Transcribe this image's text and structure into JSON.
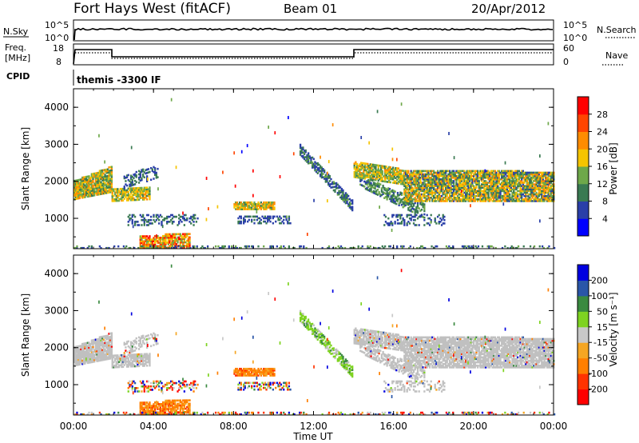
{
  "header": {
    "station": "Fort Hays West (fitACF)",
    "beam": "Beam 01",
    "date": "20/Apr/2012"
  },
  "top_panels": {
    "nsky_label": "N.Sky",
    "nsearch_label": "N.Search",
    "noise_ticks": [
      "10^5",
      "10^0"
    ],
    "freq_label_1": "Freq.",
    "freq_label_2": "[MHz]",
    "freq_ticks": [
      "18",
      "8"
    ],
    "nave_label": "Nave",
    "nave_ticks": [
      "60",
      "0"
    ],
    "cpid_label": "CPID",
    "cpid_text": "themis -3300 IF"
  },
  "colors": {
    "power": [
      "#0000ff",
      "#2a3fa8",
      "#3a7a52",
      "#6ea84a",
      "#f5c400",
      "#ff8c00",
      "#ff4500",
      "#ff0000"
    ],
    "velocity": [
      "#0000e0",
      "#2a56a8",
      "#3a8a40",
      "#7ed321",
      "#c8c8c8",
      "#f5a623",
      "#ff7f00",
      "#ff3300",
      "#ff0000"
    ],
    "ground_scatter": "#c0c0c0"
  },
  "chart_data": [
    {
      "type": "heatmap",
      "name": "power",
      "ylabel": "Slant Range [km]",
      "xlim_hours": [
        0,
        24
      ],
      "ylim": [
        180,
        4500
      ],
      "yticks": [
        1000,
        2000,
        3000,
        4000
      ],
      "xticks_hours": [
        0,
        4,
        8,
        12,
        16,
        20,
        24
      ],
      "colorbar": {
        "label": "Power [dB]",
        "ticks": [
          "28",
          "24",
          "20",
          "16",
          "12",
          "8",
          "4"
        ],
        "range": [
          0,
          30
        ]
      }
    },
    {
      "type": "heatmap",
      "name": "velocity",
      "ylabel": "Slant Range [km]",
      "xlabel": "Time UT",
      "xlim_hours": [
        0,
        24
      ],
      "ylim": [
        180,
        4500
      ],
      "yticks": [
        1000,
        2000,
        3000,
        4000
      ],
      "xticks_hours": [
        0,
        4,
        8,
        12,
        16,
        20,
        24
      ],
      "xtick_labels": [
        "00:00",
        "04:00",
        "08:00",
        "12:00",
        "16:00",
        "20:00",
        "00:00"
      ],
      "colorbar": {
        "label": "Velocity [m s⁻¹]",
        "ticks": [
          "200",
          "100",
          "50",
          "15",
          "-15",
          "-50",
          "-100",
          "-200"
        ]
      }
    }
  ],
  "scatter_regions": [
    {
      "t0": 0.0,
      "t1": 1.9,
      "r0": 1500,
      "r1": 2000,
      "r_end0": 1700,
      "r_end1": 2400,
      "density": 0.9,
      "p": [
        8,
        22
      ],
      "v": "gs"
    },
    {
      "t0": 1.9,
      "t1": 3.8,
      "r0": 1450,
      "r1": 1800,
      "r_end0": 1500,
      "r_end1": 1850,
      "density": 0.8,
      "p": [
        10,
        20
      ],
      "v": "gs"
    },
    {
      "t0": 2.5,
      "t1": 4.2,
      "r0": 1750,
      "r1": 2200,
      "r_end0": 2100,
      "r_end1": 2400,
      "density": 0.4,
      "p": [
        4,
        10
      ],
      "v": "gs"
    },
    {
      "t0": 2.7,
      "t1": 6.2,
      "r0": 800,
      "r1": 1100,
      "r_end0": 800,
      "r_end1": 1100,
      "density": 0.35,
      "p": [
        4,
        10
      ],
      "v": "mix"
    },
    {
      "t0": 3.3,
      "t1": 5.8,
      "r0": 180,
      "r1": 500,
      "r_end0": 200,
      "r_end1": 600,
      "density": 0.8,
      "p": [
        12,
        28
      ],
      "v": "neg"
    },
    {
      "t0": 8.0,
      "t1": 10.0,
      "r0": 1230,
      "r1": 1430,
      "r_end0": 1230,
      "r_end1": 1430,
      "density": 0.85,
      "p": [
        10,
        22
      ],
      "v": "neg"
    },
    {
      "t0": 8.2,
      "t1": 10.8,
      "r0": 850,
      "r1": 1050,
      "r_end0": 850,
      "r_end1": 1050,
      "density": 0.35,
      "p": [
        4,
        10
      ],
      "v": "mix"
    },
    {
      "t0": 11.3,
      "t1": 13.9,
      "r0": 2700,
      "r1": 3000,
      "r_end0": 1200,
      "r_end1": 1500,
      "density": 0.7,
      "p": [
        4,
        12
      ],
      "v": "green"
    },
    {
      "t0": 14.0,
      "t1": 16.5,
      "r0": 2100,
      "r1": 2550,
      "r_end0": 1900,
      "r_end1": 2300,
      "density": 0.85,
      "p": [
        10,
        20
      ],
      "v": "gs"
    },
    {
      "t0": 14.3,
      "t1": 17.5,
      "r0": 1850,
      "r1": 2150,
      "r_end0": 1000,
      "r_end1": 1400,
      "density": 0.6,
      "p": [
        6,
        14
      ],
      "v": "gs"
    },
    {
      "t0": 15.5,
      "t1": 18.5,
      "r0": 800,
      "r1": 1100,
      "r_end0": 800,
      "r_end1": 1100,
      "density": 0.35,
      "p": [
        4,
        10
      ],
      "v": "gs"
    },
    {
      "t0": 16.5,
      "t1": 24.0,
      "r0": 1450,
      "r1": 2300,
      "r_end0": 1450,
      "r_end1": 2250,
      "density": 0.85,
      "p": [
        6,
        22
      ],
      "v": "gs"
    },
    {
      "t0": 0.0,
      "t1": 24.0,
      "r0": 180,
      "r1": 260,
      "r_end0": 180,
      "r_end1": 260,
      "density": 0.25,
      "p": [
        4,
        14
      ],
      "v": "mix"
    }
  ]
}
